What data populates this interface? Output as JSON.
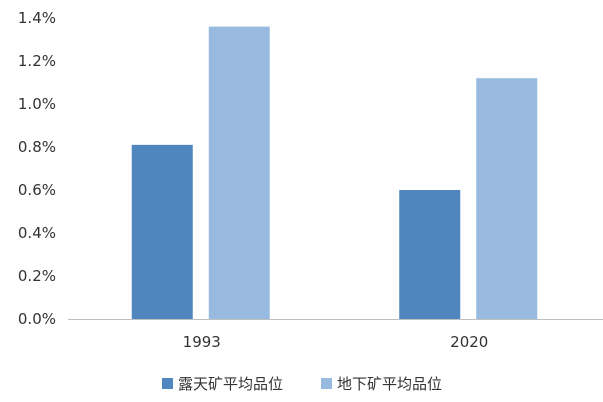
{
  "chart_data": {
    "type": "bar",
    "categories": [
      "1993",
      "2020"
    ],
    "series": [
      {
        "name": "露天矿平均品位",
        "values": [
          0.81,
          0.6
        ],
        "color": "#4f86c0"
      },
      {
        "name": "地下矿平均品位",
        "values": [
          1.36,
          1.12
        ],
        "color": "#99bae0"
      }
    ],
    "ylim": [
      0,
      1.4
    ],
    "yticks": [
      "0.0%",
      "0.2%",
      "0.4%",
      "0.6%",
      "0.8%",
      "1.0%",
      "1.2%",
      "1.4%"
    ],
    "grid": false,
    "legend_position": "bottom",
    "axis_color": "#bfbfbf"
  }
}
